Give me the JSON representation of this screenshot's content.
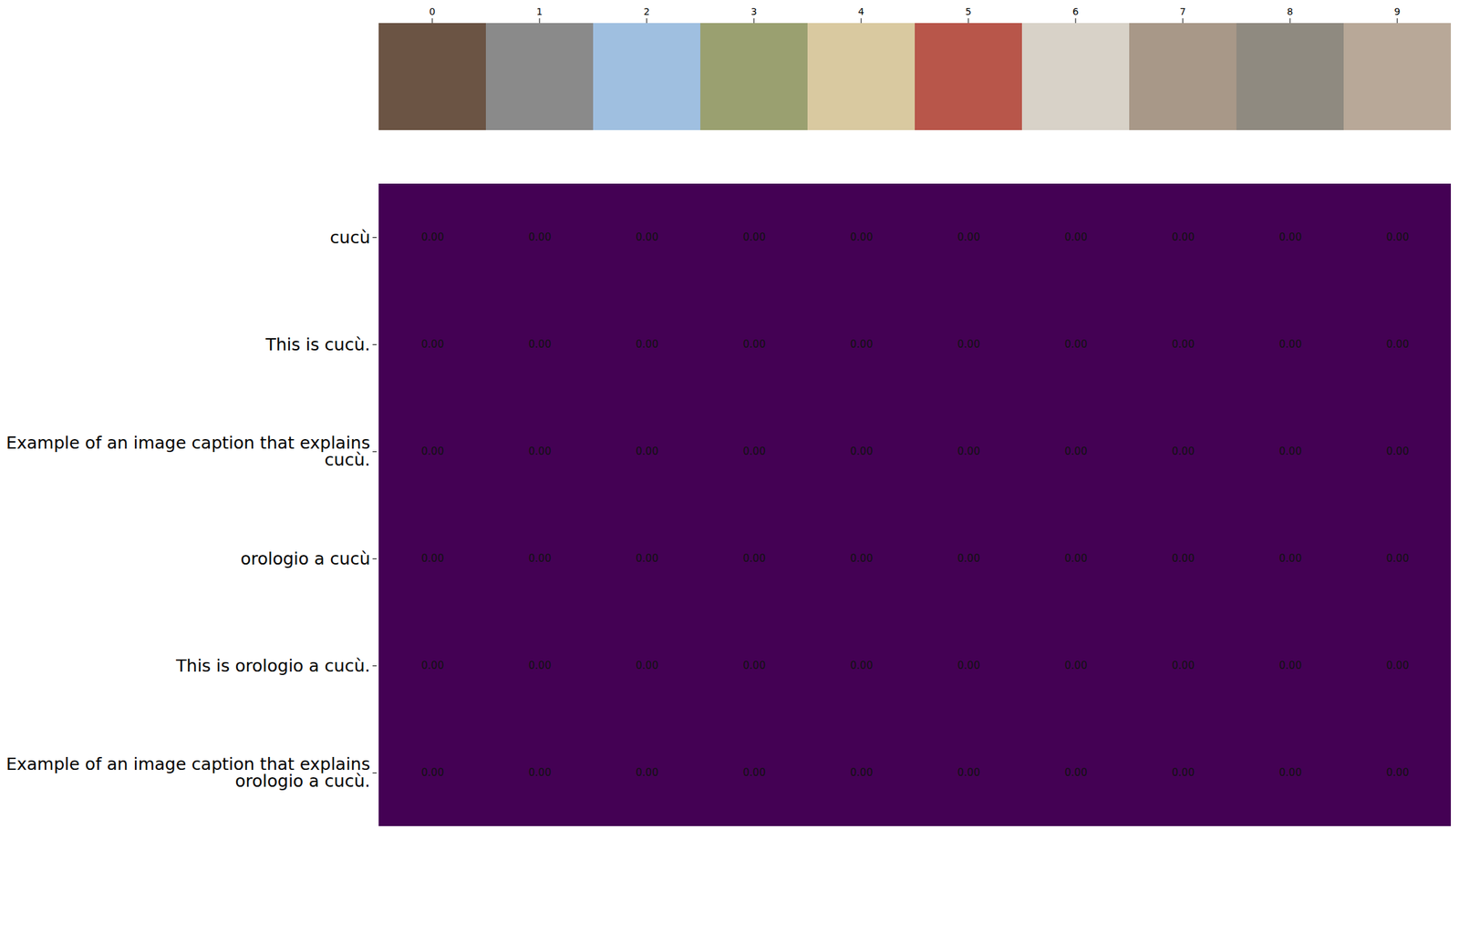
{
  "chart_data": {
    "type": "heatmap",
    "columns": [
      0,
      1,
      2,
      3,
      4,
      5,
      6,
      7,
      8,
      9
    ],
    "rows": [
      "cucù",
      "This is cucù.",
      "Example of an image caption that explains cucù.",
      "orologio a cucù",
      "This is orologio a cucù.",
      "Example of an image caption that explains orologio a cucù."
    ],
    "values": [
      [
        0,
        0,
        0,
        0,
        0,
        0,
        0,
        0,
        0,
        0
      ],
      [
        0,
        0,
        0,
        0,
        0,
        0,
        0,
        0,
        0,
        0
      ],
      [
        0,
        0,
        0,
        0,
        0,
        0,
        0,
        0,
        0,
        0
      ],
      [
        0,
        0,
        0,
        0,
        0,
        0,
        0,
        0,
        0,
        0
      ],
      [
        0,
        0,
        0,
        0,
        0,
        0,
        0,
        0,
        0,
        0
      ],
      [
        0,
        0,
        0,
        0,
        0,
        0,
        0,
        0,
        0,
        0
      ]
    ],
    "value_labels": [
      [
        "0.00",
        "0.00",
        "0.00",
        "0.00",
        "0.00",
        "0.00",
        "0.00",
        "0.00",
        "0.00",
        "0.00"
      ],
      [
        "0.00",
        "0.00",
        "0.00",
        "0.00",
        "0.00",
        "0.00",
        "0.00",
        "0.00",
        "0.00",
        "0.00"
      ],
      [
        "0.00",
        "0.00",
        "0.00",
        "0.00",
        "0.00",
        "0.00",
        "0.00",
        "0.00",
        "0.00",
        "0.00"
      ],
      [
        "0.00",
        "0.00",
        "0.00",
        "0.00",
        "0.00",
        "0.00",
        "0.00",
        "0.00",
        "0.00",
        "0.00"
      ],
      [
        "0.00",
        "0.00",
        "0.00",
        "0.00",
        "0.00",
        "0.00",
        "0.00",
        "0.00",
        "0.00",
        "0.00"
      ],
      [
        "0.00",
        "0.00",
        "0.00",
        "0.00",
        "0.00",
        "0.00",
        "0.00",
        "0.00",
        "0.00",
        "0.00"
      ]
    ],
    "data_labels": true,
    "color": "#440154"
  }
}
